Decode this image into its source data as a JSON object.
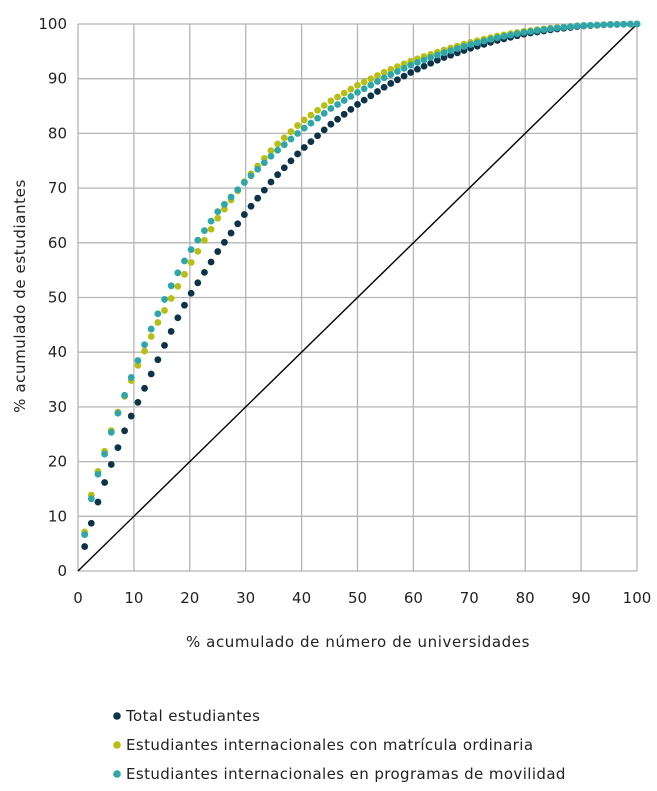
{
  "chart_data": {
    "type": "scatter",
    "title": "",
    "xlabel": "% acumulado de número de universidades",
    "ylabel": "% acumulado de estudiantes",
    "xlim": [
      0,
      100
    ],
    "ylim": [
      0,
      100
    ],
    "x_ticks": [
      "0",
      "10",
      "20",
      "30",
      "40",
      "50",
      "60",
      "70",
      "80",
      "90",
      "100"
    ],
    "y_ticks": [
      "0",
      "10",
      "20",
      "30",
      "40",
      "50",
      "60",
      "70",
      "80",
      "90",
      "100"
    ],
    "grid": true,
    "legend_position": "bottom",
    "reference_line": {
      "x": [
        0,
        100
      ],
      "y": [
        0,
        100
      ],
      "color": "#000000"
    },
    "series": [
      {
        "name": "Total estudiantes",
        "color": "#0d3349",
        "x": [
          1.2,
          2.4,
          3.6,
          4.8,
          6.0,
          7.2,
          8.4,
          9.6,
          10.8,
          12.0,
          14.0,
          16.0,
          18.0,
          20.0,
          25.0,
          30.0,
          35.0,
          40.0,
          45.0,
          50.0,
          55.0,
          60.0,
          65.0,
          70.0,
          75.0,
          80.0,
          85.0,
          90.0,
          95.0,
          100.0
        ],
        "y": [
          4.5,
          8.8,
          12.7,
          16.3,
          19.6,
          22.7,
          25.8,
          28.5,
          31.0,
          33.6,
          38.0,
          42.4,
          46.6,
          50.4,
          58.4,
          65.5,
          71.7,
          77.0,
          81.5,
          85.3,
          88.6,
          91.4,
          93.7,
          95.5,
          97.0,
          98.2,
          99.0,
          99.6,
          99.9,
          100.0
        ]
      },
      {
        "name": "Estudiantes internacionales con matrícula ordinaria",
        "color": "#b9be14",
        "x": [
          1.2,
          2.4,
          3.6,
          4.8,
          6.0,
          7.2,
          8.4,
          9.6,
          10.8,
          12.0,
          14.0,
          16.0,
          18.0,
          20.0,
          25.0,
          30.0,
          35.0,
          40.0,
          45.0,
          50.0,
          55.0,
          60.0,
          65.0,
          70.0,
          75.0,
          80.0,
          85.0,
          90.0,
          95.0,
          100.0
        ],
        "y": [
          7.2,
          14.0,
          18.3,
          22.0,
          25.8,
          29.2,
          32.1,
          35.0,
          37.8,
          40.4,
          44.9,
          48.6,
          52.3,
          56.0,
          64.5,
          71.5,
          77.4,
          82.1,
          85.8,
          88.8,
          91.3,
          93.4,
          95.1,
          96.6,
          97.8,
          98.7,
          99.3,
          99.7,
          99.9,
          100.0
        ]
      },
      {
        "name": "Estudiantes internacionales en programas de movilidad",
        "color": "#2ea6aa",
        "x": [
          1.2,
          2.4,
          3.6,
          4.8,
          6.0,
          7.2,
          8.4,
          9.6,
          10.8,
          12.0,
          14.0,
          16.0,
          18.0,
          20.0,
          25.0,
          30.0,
          35.0,
          40.0,
          45.0,
          50.0,
          55.0,
          60.0,
          65.0,
          70.0,
          75.0,
          80.0,
          85.0,
          90.0,
          95.0,
          100.0
        ],
        "y": [
          6.7,
          13.3,
          17.8,
          21.5,
          25.5,
          29.0,
          32.3,
          35.6,
          38.7,
          41.6,
          46.4,
          50.8,
          54.8,
          58.4,
          65.7,
          71.3,
          76.3,
          80.6,
          84.4,
          87.5,
          90.3,
          92.7,
          94.6,
          96.2,
          97.5,
          98.5,
          99.2,
          99.7,
          99.9,
          100.0
        ]
      }
    ]
  }
}
